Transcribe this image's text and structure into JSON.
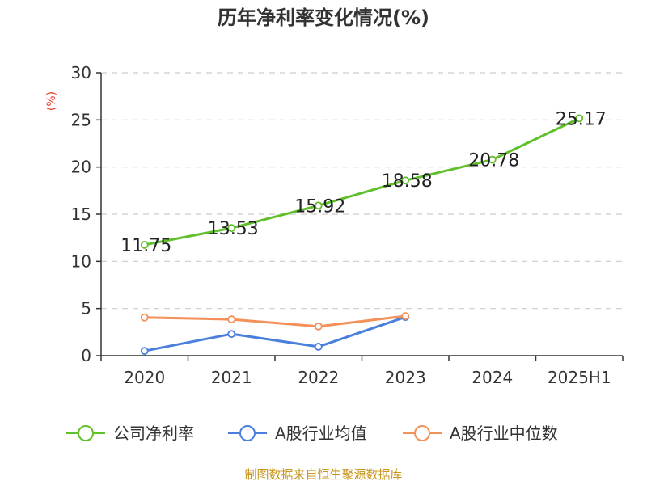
{
  "chart_data": {
    "type": "line",
    "title": "历年净利率变化情况(%)",
    "ylabel": "(%)",
    "xlabel": "",
    "categories": [
      "2020",
      "2021",
      "2022",
      "2023",
      "2024",
      "2025H1"
    ],
    "yticks": [
      "0",
      "5",
      "10",
      "15",
      "20",
      "25",
      "30"
    ],
    "ylim": [
      0,
      30
    ],
    "grid": true,
    "legend_position": "bottom",
    "series": [
      {
        "name": "公司净利率",
        "color": "#5fc02a",
        "values": [
          11.75,
          13.53,
          15.92,
          18.58,
          20.78,
          25.17
        ],
        "labels": [
          "11.75",
          "13.53",
          "15.92",
          "18.58",
          "20.78",
          "25.17"
        ]
      },
      {
        "name": "A股行业均值",
        "color": "#4a7fdc",
        "values": [
          0.5,
          2.3,
          0.95,
          4.1,
          null,
          null
        ]
      },
      {
        "name": "A股行业中位数",
        "color": "#f4905a",
        "values": [
          4.05,
          3.85,
          3.1,
          4.2,
          null,
          null
        ]
      }
    ]
  },
  "source": "制图数据来自恒生聚源数据库"
}
